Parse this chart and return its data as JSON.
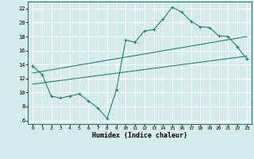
{
  "title": "",
  "xlabel": "Humidex (Indice chaleur)",
  "bg_color": "#d4edec",
  "grid_color": "#ffffff",
  "line_color": "#2e7d6e",
  "xlim": [
    -0.5,
    23.5
  ],
  "ylim": [
    5.5,
    23.0
  ],
  "xticks": [
    0,
    1,
    2,
    3,
    4,
    5,
    6,
    7,
    8,
    9,
    10,
    11,
    12,
    13,
    14,
    15,
    16,
    17,
    18,
    19,
    20,
    21,
    22,
    23
  ],
  "yticks": [
    6,
    8,
    10,
    12,
    14,
    16,
    18,
    20,
    22
  ],
  "line1_x": [
    0,
    1,
    2,
    3,
    4,
    5,
    6,
    7,
    8,
    9,
    10,
    11,
    12,
    13,
    14,
    15,
    16,
    17,
    18,
    19,
    20,
    21,
    22,
    23
  ],
  "line1_y": [
    13.8,
    12.6,
    9.5,
    9.2,
    9.5,
    9.8,
    8.8,
    7.8,
    6.3,
    10.4,
    17.5,
    17.2,
    18.8,
    19.0,
    20.5,
    22.2,
    21.5,
    20.2,
    19.4,
    19.3,
    18.1,
    18.0,
    16.5,
    14.8
  ],
  "line2_x": [
    0,
    23
  ],
  "line2_y": [
    12.8,
    18.0
  ],
  "line3_x": [
    0,
    23
  ],
  "line3_y": [
    11.2,
    15.2
  ]
}
